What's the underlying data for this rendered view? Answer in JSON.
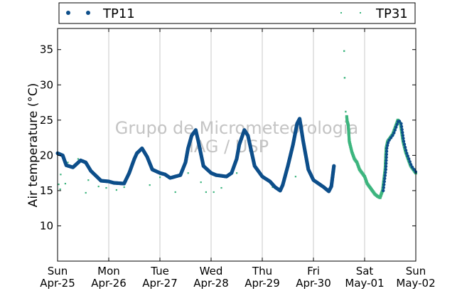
{
  "watermark": {
    "line1": "Grupo de Micrometeorologia",
    "line2": "IAG / USP"
  },
  "colors": {
    "tp11": "#0d4e8a",
    "tp31": "#3db57e",
    "grid": "#c8c8c8",
    "axis": "#000000",
    "watermark": "#c4c4c4"
  },
  "chart_data": {
    "type": "scatter",
    "title": "",
    "ylabel": "Air temperature (°C)",
    "xlabel": "",
    "ylim": [
      5,
      38
    ],
    "xlim": [
      0,
      7
    ],
    "grid": "vertical",
    "legend": "top",
    "yticks": [
      10,
      15,
      20,
      25,
      30,
      35
    ],
    "xticks": [
      {
        "x": 0,
        "day": "Sun",
        "date": "Apr-25"
      },
      {
        "x": 1,
        "day": "Mon",
        "date": "Apr-26"
      },
      {
        "x": 2,
        "day": "Tue",
        "date": "Apr-27"
      },
      {
        "x": 3,
        "day": "Wed",
        "date": "Apr-28"
      },
      {
        "x": 4,
        "day": "Thu",
        "date": "Apr-29"
      },
      {
        "x": 5,
        "day": "Fri",
        "date": "Apr-30"
      },
      {
        "x": 6,
        "day": "Sat",
        "date": "May-01"
      },
      {
        "x": 7,
        "day": "Sun",
        "date": "May-02"
      }
    ],
    "series": [
      {
        "name": "TP11",
        "values": [
          [
            0.0,
            20.3
          ],
          [
            0.1,
            20.0
          ],
          [
            0.17,
            18.6
          ],
          [
            0.3,
            18.3
          ],
          [
            0.45,
            19.3
          ],
          [
            0.55,
            19.0
          ],
          [
            0.65,
            17.8
          ],
          [
            0.85,
            16.4
          ],
          [
            1.0,
            16.3
          ],
          [
            1.1,
            16.1
          ],
          [
            1.3,
            16.0
          ],
          [
            1.4,
            17.5
          ],
          [
            1.5,
            19.5
          ],
          [
            1.55,
            20.3
          ],
          [
            1.65,
            21.0
          ],
          [
            1.75,
            19.8
          ],
          [
            1.85,
            18.0
          ],
          [
            2.0,
            17.5
          ],
          [
            2.1,
            17.3
          ],
          [
            2.2,
            16.8
          ],
          [
            2.4,
            17.2
          ],
          [
            2.5,
            19.0
          ],
          [
            2.55,
            21.0
          ],
          [
            2.62,
            22.8
          ],
          [
            2.7,
            23.6
          ],
          [
            2.75,
            22.0
          ],
          [
            2.85,
            18.5
          ],
          [
            3.0,
            17.5
          ],
          [
            3.1,
            17.2
          ],
          [
            3.3,
            17.0
          ],
          [
            3.4,
            17.5
          ],
          [
            3.5,
            19.5
          ],
          [
            3.55,
            21.5
          ],
          [
            3.65,
            23.6
          ],
          [
            3.72,
            22.8
          ],
          [
            3.85,
            18.5
          ],
          [
            4.0,
            17.0
          ],
          [
            4.15,
            16.3
          ],
          [
            4.25,
            15.5
          ],
          [
            4.35,
            15.0
          ],
          [
            4.4,
            15.8
          ],
          [
            4.5,
            18.5
          ],
          [
            4.6,
            21.5
          ],
          [
            4.68,
            24.5
          ],
          [
            4.73,
            25.2
          ],
          [
            4.8,
            22.0
          ],
          [
            4.9,
            18.0
          ],
          [
            5.0,
            16.5
          ],
          [
            5.2,
            15.5
          ],
          [
            5.3,
            14.9
          ],
          [
            5.35,
            15.6
          ],
          [
            5.4,
            18.5
          ]
        ]
      },
      {
        "name": "TP31",
        "values": [
          [
            0.02,
            15.9
          ],
          [
            0.05,
            15.2
          ],
          [
            0.06,
            17.3
          ],
          [
            0.15,
            16.0
          ],
          [
            0.2,
            19.0
          ],
          [
            0.4,
            19.5
          ],
          [
            0.55,
            14.7
          ],
          [
            0.6,
            16.5
          ],
          [
            0.8,
            15.6
          ],
          [
            0.95,
            15.4
          ],
          [
            1.15,
            15.1
          ],
          [
            1.3,
            15.5
          ],
          [
            1.45,
            18.5
          ],
          [
            1.8,
            15.8
          ],
          [
            2.0,
            16.9
          ],
          [
            2.3,
            14.8
          ],
          [
            2.55,
            17.5
          ],
          [
            2.8,
            16.2
          ],
          [
            2.9,
            14.8
          ],
          [
            3.05,
            14.8
          ],
          [
            3.2,
            15.4
          ],
          [
            3.5,
            17.5
          ],
          [
            4.2,
            15.5
          ],
          [
            4.65,
            17.0
          ],
          [
            5.6,
            34.8
          ],
          [
            5.61,
            31.0
          ],
          [
            5.63,
            26.2
          ],
          [
            5.65,
            25.5
          ],
          [
            5.66,
            24.8
          ],
          [
            5.68,
            24.3
          ],
          [
            5.7,
            22.0
          ],
          [
            5.75,
            20.5
          ],
          [
            5.8,
            19.5
          ],
          [
            5.85,
            19.0
          ],
          [
            5.9,
            18.0
          ],
          [
            6.0,
            17.0
          ],
          [
            6.05,
            16.0
          ],
          [
            6.1,
            15.5
          ],
          [
            6.15,
            15.0
          ],
          [
            6.2,
            14.5
          ],
          [
            6.25,
            14.2
          ],
          [
            6.3,
            14.0
          ],
          [
            6.35,
            15.0
          ],
          [
            6.4,
            18.0
          ],
          [
            6.42,
            21.0
          ],
          [
            6.45,
            22.0
          ],
          [
            6.5,
            22.5
          ],
          [
            6.55,
            23.0
          ],
          [
            6.6,
            24.0
          ],
          [
            6.65,
            25.0
          ],
          [
            6.7,
            24.5
          ],
          [
            6.75,
            22.0
          ],
          [
            6.8,
            20.5
          ],
          [
            6.85,
            19.5
          ],
          [
            6.9,
            18.5
          ],
          [
            6.95,
            18.0
          ],
          [
            7.0,
            17.5
          ]
        ]
      }
    ]
  }
}
